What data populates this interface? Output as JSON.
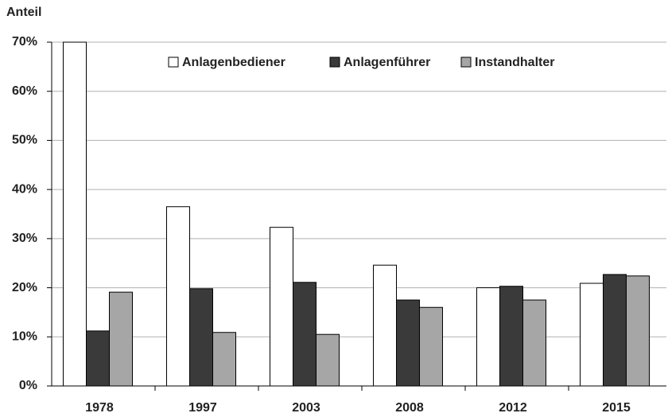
{
  "chart_data": {
    "type": "bar",
    "y_axis_label": "Anteil",
    "categories": [
      "1978",
      "1997",
      "2003",
      "2008",
      "2012",
      "2015"
    ],
    "series": [
      {
        "name": "Anlagenbediener",
        "color": "#ffffff",
        "values": [
          70,
          36.5,
          32.3,
          24.6,
          20,
          20.9
        ]
      },
      {
        "name": "Anlagenführer",
        "color": "#3a3a3a",
        "values": [
          11.2,
          19.8,
          21.1,
          17.5,
          20.3,
          22.7
        ]
      },
      {
        "name": "Instandhalter",
        "color": "#a6a6a6",
        "values": [
          19.1,
          10.9,
          10.5,
          16,
          17.5,
          22.4
        ]
      }
    ],
    "ylim": [
      0,
      70
    ],
    "yticks": [
      {
        "value": 0,
        "label": "0%"
      },
      {
        "value": 10,
        "label": "10%"
      },
      {
        "value": 20,
        "label": "20%"
      },
      {
        "value": 30,
        "label": "30%"
      },
      {
        "value": 40,
        "label": "40%"
      },
      {
        "value": 50,
        "label": "50%"
      },
      {
        "value": 60,
        "label": "60%"
      },
      {
        "value": 70,
        "label": "70%"
      }
    ],
    "grid": true,
    "legend": "top"
  }
}
